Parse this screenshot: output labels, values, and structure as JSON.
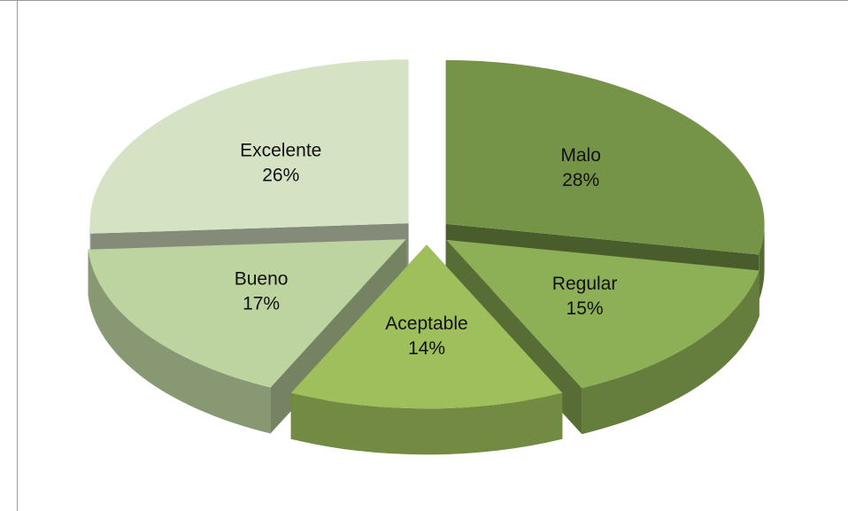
{
  "chart_data": {
    "type": "pie",
    "title": "",
    "legend": "none",
    "slices": [
      {
        "label": "Malo",
        "value": 28,
        "display": "28%",
        "color": "#769447"
      },
      {
        "label": "Regular",
        "value": 15,
        "display": "15%",
        "color": "#8daf55"
      },
      {
        "label": "Aceptable",
        "value": 14,
        "display": "14%",
        "color": "#9fbf5c"
      },
      {
        "label": "Bueno",
        "value": 17,
        "display": "17%",
        "color": "#bdd3a0"
      },
      {
        "label": "Excelente",
        "value": 26,
        "display": "26%",
        "color": "#d5e2c3"
      }
    ]
  }
}
